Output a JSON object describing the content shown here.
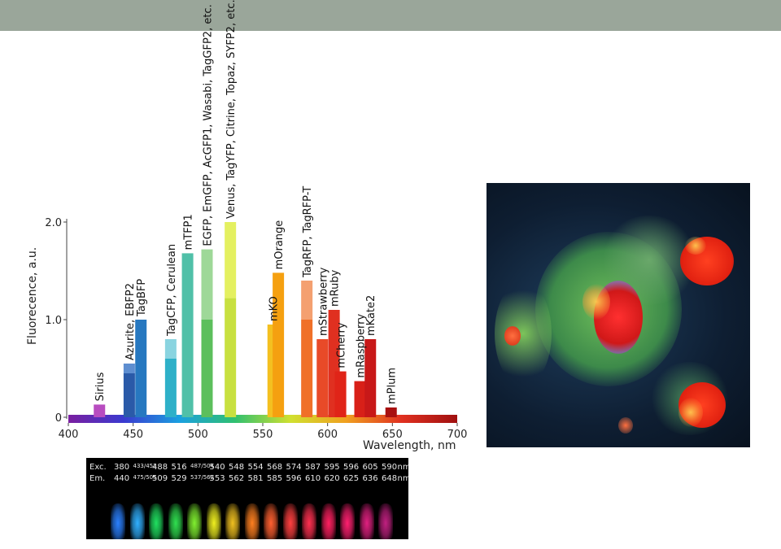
{
  "colors": {
    "top_bar": "#9aa69a",
    "axis": "#444444"
  },
  "chart_data": {
    "type": "bar",
    "xlabel": "Wavelength, nm",
    "ylabel": "Fluorecence, a.u.",
    "xlim": [
      400,
      700
    ],
    "ylim": [
      0,
      2.0
    ],
    "x_ticks": [
      400,
      450,
      500,
      550,
      600,
      650,
      700
    ],
    "y_ticks": [
      {
        "value": 0,
        "label": "0"
      },
      {
        "value": 1.0,
        "label": "1.0"
      },
      {
        "value": 2.0,
        "label": "2.0"
      }
    ],
    "bars": [
      {
        "label": "Sirius",
        "x": 424,
        "value": 0.13,
        "color": "#b84cc0"
      },
      {
        "label": "Azurite, EBFP2",
        "x": 447,
        "value": 0.55,
        "inner": 0.45,
        "color": "#2a5aa8",
        "light": "#5e8ed0"
      },
      {
        "label": "TagBFP",
        "x": 456,
        "value": 1.0,
        "color": "#2778c0"
      },
      {
        "label": "TagCFP, Cerulean",
        "x": 479,
        "value": 0.8,
        "inner": 0.6,
        "color": "#2eb0c8",
        "light": "#8ad4e0"
      },
      {
        "label": "mTFP1",
        "x": 492,
        "value": 1.68,
        "color": "#50c0a8"
      },
      {
        "label": "EGFP, EmGFP, AcGFP1, Wasabi, TagGFP2, etc.",
        "x": 507,
        "value": 1.72,
        "inner": 1.0,
        "color": "#5cbf5c",
        "light": "#9ed898"
      },
      {
        "label": "Venus, TagYFP, Citrine, Topaz, SYFP2, etc.",
        "x": 525,
        "value": 2.0,
        "inner": 1.22,
        "color": "#c8e040",
        "light": "#e4f060"
      },
      {
        "label": "mKO",
        "x": 558,
        "value": 0.95,
        "color": "#f4c020"
      },
      {
        "label": "mOrange",
        "x": 562,
        "value": 1.48,
        "color": "#f5a010"
      },
      {
        "label": "TagRFP, TagRFP-T",
        "x": 584,
        "value": 1.4,
        "inner": 1.0,
        "color": "#f07028",
        "light": "#f4a070"
      },
      {
        "label": "mStrawberry",
        "x": 596,
        "value": 0.8,
        "color": "#e84a28"
      },
      {
        "label": "mRuby",
        "x": 605,
        "value": 1.1,
        "color": "#e03020"
      },
      {
        "label": "mCherry",
        "x": 610,
        "value": 0.47,
        "color": "#e02418"
      },
      {
        "label": "mRaspberry",
        "x": 625,
        "value": 0.37,
        "color": "#d82018"
      },
      {
        "label": "mKate2",
        "x": 633,
        "value": 0.8,
        "color": "#c81818"
      },
      {
        "label": "mPlum",
        "x": 649,
        "value": 0.1,
        "color": "#a81010"
      }
    ],
    "gradient_colors": [
      "#7a1fa0",
      "#3a3ad0",
      "#1aa0e0",
      "#30c070",
      "#d0e030",
      "#f0a020",
      "#e03020",
      "#a01010"
    ]
  },
  "tubes": {
    "exc_label": "Exc.",
    "em_label": "Em.",
    "unit": "nm",
    "exc": [
      "380",
      "433/452",
      "488",
      "516",
      "487/504",
      "540",
      "548",
      "554",
      "568",
      "574",
      "587",
      "595",
      "596",
      "605",
      "590"
    ],
    "em": [
      "440",
      "475/505",
      "509",
      "529",
      "537/562",
      "553",
      "562",
      "581",
      "585",
      "596",
      "610",
      "620",
      "625",
      "636",
      "648"
    ],
    "colors": [
      "#2a80ff",
      "#30b0ff",
      "#20e060",
      "#30e050",
      "#80f030",
      "#f0f020",
      "#f0c020",
      "#ff8020",
      "#ff6030",
      "#ff4040",
      "#ff3050",
      "#ff2060",
      "#ff2070",
      "#e02080",
      "#c02080"
    ]
  }
}
